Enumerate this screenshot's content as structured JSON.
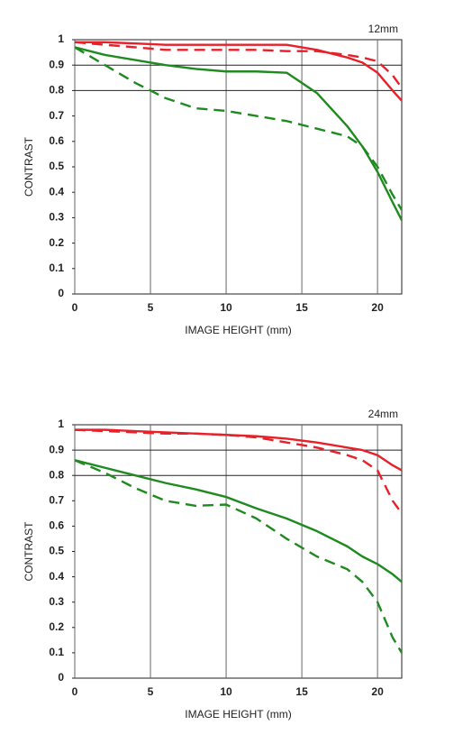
{
  "chart_data": [
    {
      "type": "line",
      "title": "12mm",
      "xlabel": "IMAGE HEIGHT (mm)",
      "ylabel": "CONTRAST",
      "x": [
        0,
        2,
        4,
        6,
        8,
        10,
        12,
        14,
        16,
        18,
        19,
        20,
        21,
        21.6
      ],
      "series": [
        {
          "color": "#e8202a",
          "style": "solid",
          "values": [
            0.99,
            0.99,
            0.985,
            0.98,
            0.98,
            0.98,
            0.98,
            0.98,
            0.96,
            0.93,
            0.91,
            0.87,
            0.8,
            0.76
          ]
        },
        {
          "color": "#e8202a",
          "style": "dashed",
          "values": [
            0.99,
            0.98,
            0.97,
            0.96,
            0.96,
            0.96,
            0.96,
            0.955,
            0.955,
            0.94,
            0.93,
            0.915,
            0.86,
            0.81
          ]
        },
        {
          "color": "#1f8a1f",
          "style": "solid",
          "values": [
            0.97,
            0.94,
            0.92,
            0.9,
            0.885,
            0.875,
            0.875,
            0.87,
            0.79,
            0.66,
            0.58,
            0.48,
            0.36,
            0.29
          ]
        },
        {
          "color": "#1f8a1f",
          "style": "dashed",
          "values": [
            0.97,
            0.9,
            0.83,
            0.77,
            0.73,
            0.72,
            0.7,
            0.68,
            0.65,
            0.62,
            0.58,
            0.5,
            0.39,
            0.33
          ]
        }
      ],
      "xlim": [
        0,
        21.6
      ],
      "xticks": [
        0,
        5,
        10,
        15,
        20
      ],
      "ylim": [
        0,
        1
      ],
      "yticks": [
        0,
        0.1,
        0.2,
        0.3,
        0.4,
        0.5,
        0.6,
        0.7,
        0.8,
        0.9,
        1
      ],
      "grid": true,
      "reference_lines": [
        0.8,
        0.9
      ]
    },
    {
      "type": "line",
      "title": "24mm",
      "xlabel": "IMAGE HEIGHT (mm)",
      "ylabel": "CONTRAST",
      "x": [
        0,
        2,
        4,
        6,
        8,
        10,
        12,
        14,
        16,
        18,
        19,
        20,
        21,
        21.6
      ],
      "series": [
        {
          "color": "#e8202a",
          "style": "solid",
          "values": [
            0.98,
            0.98,
            0.975,
            0.97,
            0.965,
            0.96,
            0.955,
            0.945,
            0.93,
            0.91,
            0.9,
            0.88,
            0.84,
            0.82
          ]
        },
        {
          "color": "#e8202a",
          "style": "dashed",
          "values": [
            0.98,
            0.975,
            0.97,
            0.965,
            0.965,
            0.96,
            0.95,
            0.93,
            0.91,
            0.88,
            0.86,
            0.82,
            0.7,
            0.65
          ]
        },
        {
          "color": "#1f8a1f",
          "style": "solid",
          "values": [
            0.86,
            0.83,
            0.8,
            0.77,
            0.745,
            0.715,
            0.67,
            0.63,
            0.58,
            0.52,
            0.48,
            0.45,
            0.41,
            0.38
          ]
        },
        {
          "color": "#1f8a1f",
          "style": "dashed",
          "values": [
            0.86,
            0.81,
            0.75,
            0.7,
            0.68,
            0.685,
            0.63,
            0.55,
            0.48,
            0.43,
            0.38,
            0.3,
            0.16,
            0.1
          ]
        }
      ],
      "xlim": [
        0,
        21.6
      ],
      "xticks": [
        0,
        5,
        10,
        15,
        20
      ],
      "ylim": [
        0,
        1
      ],
      "yticks": [
        0,
        0.1,
        0.2,
        0.3,
        0.4,
        0.5,
        0.6,
        0.7,
        0.8,
        0.9,
        1
      ],
      "grid": true,
      "reference_lines": [
        0.8,
        0.9
      ]
    }
  ]
}
